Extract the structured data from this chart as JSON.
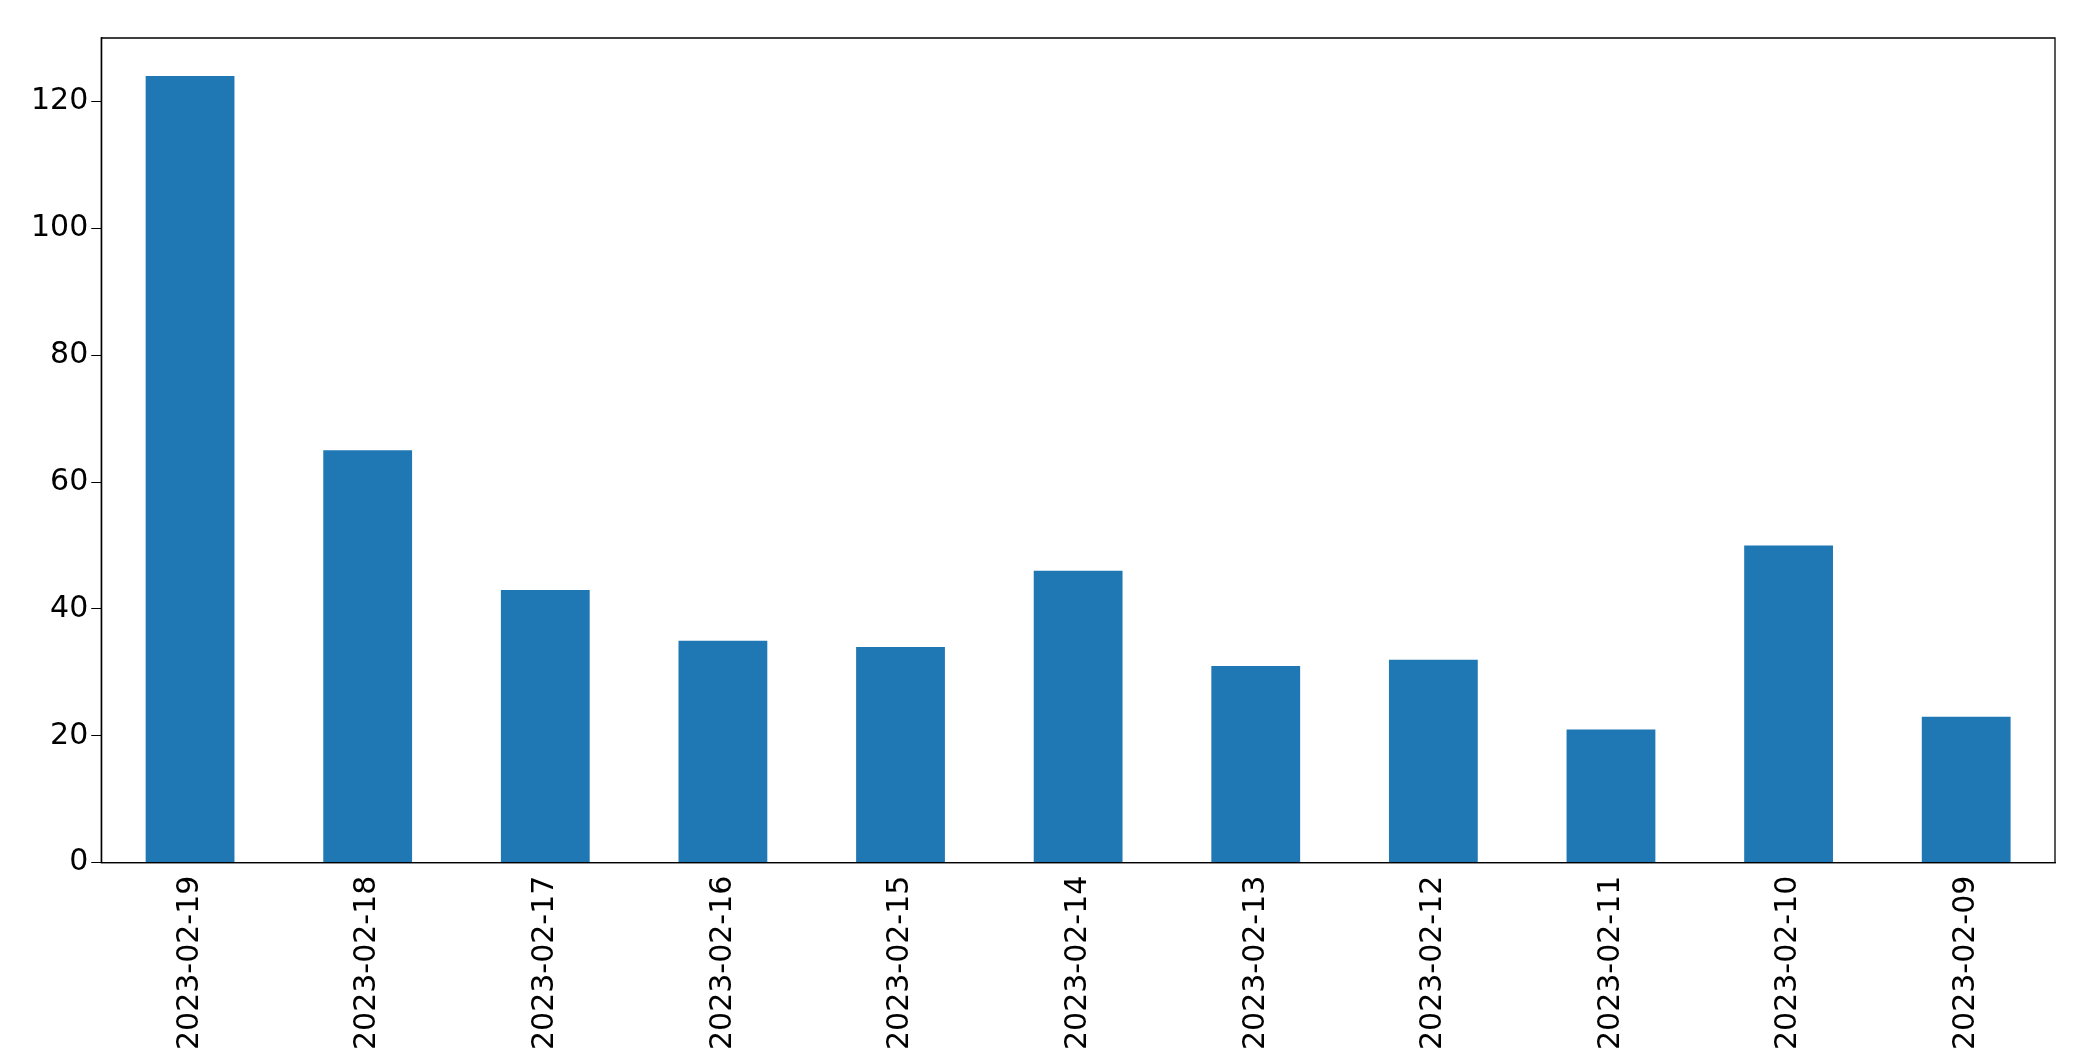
{
  "chart_data": {
    "type": "bar",
    "categories": [
      "2023-02-19",
      "2023-02-18",
      "2023-02-17",
      "2023-02-16",
      "2023-02-15",
      "2023-02-14",
      "2023-02-13",
      "2023-02-12",
      "2023-02-11",
      "2023-02-10",
      "2023-02-09"
    ],
    "values": [
      124,
      65,
      43,
      35,
      34,
      46,
      31,
      32,
      21,
      50,
      23
    ],
    "color": "#1f77b4",
    "ylim": [
      0,
      130
    ],
    "yticks": [
      0,
      20,
      40,
      60,
      80,
      100,
      120
    ],
    "grid": false,
    "legend": false
  }
}
